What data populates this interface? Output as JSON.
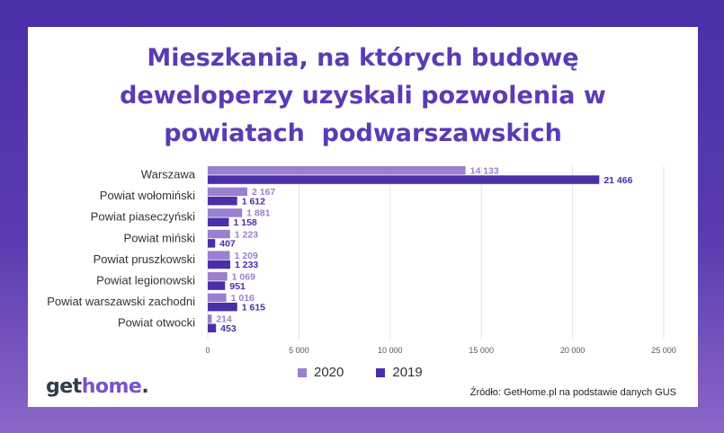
{
  "title_lines": [
    "Mieszkania, na których budowę",
    "deweloperzy uzyskali pozwolenia w",
    "powiatach  podwarszawskich"
  ],
  "source": "Źródło: GetHome.pl na podstawie danych GUS",
  "logo": {
    "part1": "get",
    "part2": "home",
    "part3": "."
  },
  "colors": {
    "s2020": "#9b7fd0",
    "s2019": "#4a2fa8",
    "title": "#5b3bb5"
  },
  "chart_data": {
    "type": "bar",
    "orientation": "horizontal",
    "categories": [
      "Warszawa",
      "Powiat wołomiński",
      "Powiat piaseczyński",
      "Powiat miński",
      "Powiat pruszkowski",
      "Powiat legionowski",
      "Powiat warszawski zachodni",
      "Powiat otwocki"
    ],
    "series": [
      {
        "name": "2020",
        "values": [
          14133,
          2167,
          1881,
          1223,
          1209,
          1069,
          1016,
          214
        ],
        "labels": [
          "14 133",
          "2 167",
          "1 881",
          "1 223",
          "1 209",
          "1 069",
          "1 016",
          "214"
        ]
      },
      {
        "name": "2019",
        "values": [
          21466,
          1612,
          1158,
          407,
          1233,
          951,
          1615,
          453
        ],
        "labels": [
          "21 466",
          "1 612",
          "1 158",
          "407",
          "1 233",
          "951",
          "1 615",
          "453"
        ]
      }
    ],
    "xlim": [
      0,
      25000
    ],
    "xticks": [
      0,
      5000,
      10000,
      15000,
      20000,
      25000
    ],
    "xtick_labels": [
      "0",
      "5 000",
      "10 000",
      "15 000",
      "20 000",
      "25 000"
    ],
    "grid": true,
    "legend": "bottom"
  }
}
